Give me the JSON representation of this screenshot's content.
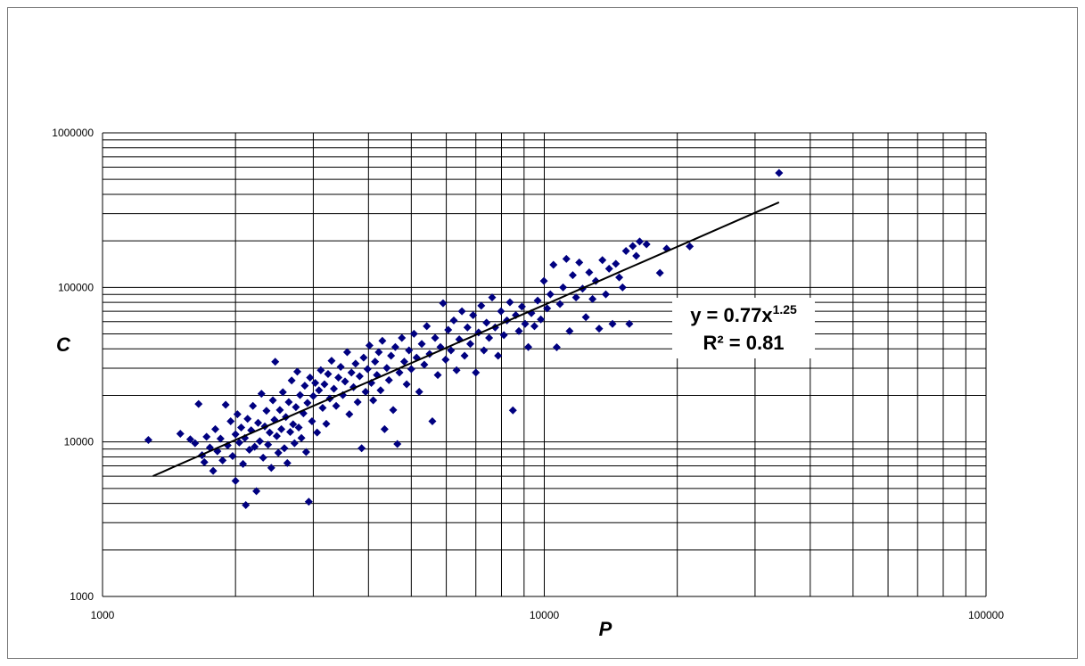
{
  "chart_data": {
    "type": "scatter",
    "title": "",
    "xlabel": "P",
    "ylabel": "C",
    "xscale": "log",
    "yscale": "log",
    "xlim": [
      1000,
      100000
    ],
    "ylim": [
      1000,
      1000000
    ],
    "x_ticks": [
      "1000",
      "10000",
      "100000"
    ],
    "y_ticks": [
      "1000",
      "10000",
      "100000",
      "1000000"
    ],
    "grid": true,
    "marker": "diamond",
    "point_color": "#000080",
    "trendline": {
      "type": "power",
      "coefficient": 0.77,
      "exponent": 1.25,
      "x_range": [
        1300,
        34000
      ],
      "color": "#000000",
      "equation": "y = 0.77x",
      "equation_exponent": "1.25",
      "r_squared": "R² = 0.81"
    },
    "points": [
      [
        1270,
        10300
      ],
      [
        1500,
        11300
      ],
      [
        1580,
        10400
      ],
      [
        1620,
        9800
      ],
      [
        1650,
        17600
      ],
      [
        1680,
        8200
      ],
      [
        1700,
        7400
      ],
      [
        1720,
        10800
      ],
      [
        1750,
        9200
      ],
      [
        1780,
        6500
      ],
      [
        1800,
        12100
      ],
      [
        1820,
        8700
      ],
      [
        1850,
        10500
      ],
      [
        1870,
        7600
      ],
      [
        1900,
        17400
      ],
      [
        1920,
        9500
      ],
      [
        1950,
        13600
      ],
      [
        1970,
        8100
      ],
      [
        2000,
        11200
      ],
      [
        2000,
        5600
      ],
      [
        2020,
        15100
      ],
      [
        2040,
        9900
      ],
      [
        2060,
        12400
      ],
      [
        2080,
        7200
      ],
      [
        2100,
        10600
      ],
      [
        2110,
        3900
      ],
      [
        2130,
        14100
      ],
      [
        2150,
        8900
      ],
      [
        2170,
        11900
      ],
      [
        2190,
        17100
      ],
      [
        2210,
        9300
      ],
      [
        2230,
        4800
      ],
      [
        2250,
        13300
      ],
      [
        2270,
        10100
      ],
      [
        2290,
        20500
      ],
      [
        2310,
        7900
      ],
      [
        2330,
        12600
      ],
      [
        2350,
        15900
      ],
      [
        2370,
        9600
      ],
      [
        2390,
        11500
      ],
      [
        2410,
        6800
      ],
      [
        2430,
        18600
      ],
      [
        2450,
        13900
      ],
      [
        2460,
        33000
      ],
      [
        2480,
        10900
      ],
      [
        2500,
        8500
      ],
      [
        2520,
        16100
      ],
      [
        2540,
        12100
      ],
      [
        2560,
        21000
      ],
      [
        2580,
        9100
      ],
      [
        2600,
        14500
      ],
      [
        2620,
        7300
      ],
      [
        2640,
        18100
      ],
      [
        2660,
        11600
      ],
      [
        2680,
        25000
      ],
      [
        2700,
        13000
      ],
      [
        2720,
        9800
      ],
      [
        2740,
        16800
      ],
      [
        2760,
        28500
      ],
      [
        2780,
        12400
      ],
      [
        2800,
        20100
      ],
      [
        2820,
        10600
      ],
      [
        2850,
        15300
      ],
      [
        2870,
        23100
      ],
      [
        2890,
        8600
      ],
      [
        2910,
        17900
      ],
      [
        2930,
        4100
      ],
      [
        2950,
        26100
      ],
      [
        2980,
        13600
      ],
      [
        3000,
        19800
      ],
      [
        3030,
        24100
      ],
      [
        3060,
        11500
      ],
      [
        3090,
        21600
      ],
      [
        3120,
        29100
      ],
      [
        3150,
        16600
      ],
      [
        3180,
        23600
      ],
      [
        3210,
        13100
      ],
      [
        3240,
        27500
      ],
      [
        3270,
        19100
      ],
      [
        3300,
        33500
      ],
      [
        3340,
        22100
      ],
      [
        3380,
        17100
      ],
      [
        3420,
        26100
      ],
      [
        3460,
        30600
      ],
      [
        3500,
        20100
      ],
      [
        3540,
        24600
      ],
      [
        3580,
        38100
      ],
      [
        3620,
        15100
      ],
      [
        3660,
        28100
      ],
      [
        3700,
        22600
      ],
      [
        3740,
        32100
      ],
      [
        3780,
        18100
      ],
      [
        3820,
        26600
      ],
      [
        3860,
        9100
      ],
      [
        3900,
        35100
      ],
      [
        3940,
        21100
      ],
      [
        3980,
        29600
      ],
      [
        4020,
        42100
      ],
      [
        4060,
        24100
      ],
      [
        4100,
        18600
      ],
      [
        4140,
        33100
      ],
      [
        4180,
        27100
      ],
      [
        4220,
        38100
      ],
      [
        4260,
        21600
      ],
      [
        4300,
        45100
      ],
      [
        4350,
        12100
      ],
      [
        4400,
        30100
      ],
      [
        4450,
        25100
      ],
      [
        4500,
        36100
      ],
      [
        4550,
        16100
      ],
      [
        4600,
        41100
      ],
      [
        4650,
        9700
      ],
      [
        4700,
        28100
      ],
      [
        4760,
        47100
      ],
      [
        4820,
        33100
      ],
      [
        4880,
        23600
      ],
      [
        4940,
        39100
      ],
      [
        5000,
        29600
      ],
      [
        5070,
        50100
      ],
      [
        5140,
        35100
      ],
      [
        5210,
        21100
      ],
      [
        5280,
        43100
      ],
      [
        5350,
        31600
      ],
      [
        5420,
        56100
      ],
      [
        5500,
        37100
      ],
      [
        5580,
        13600
      ],
      [
        5660,
        47100
      ],
      [
        5740,
        27100
      ],
      [
        5820,
        41100
      ],
      [
        5900,
        79000
      ],
      [
        5980,
        34100
      ],
      [
        6060,
        53100
      ],
      [
        6150,
        39100
      ],
      [
        6240,
        61100
      ],
      [
        6330,
        29100
      ],
      [
        6420,
        46100
      ],
      [
        6510,
        70100
      ],
      [
        6600,
        36100
      ],
      [
        6700,
        55100
      ],
      [
        6800,
        43100
      ],
      [
        6900,
        66100
      ],
      [
        7000,
        28100
      ],
      [
        7100,
        51100
      ],
      [
        7200,
        76100
      ],
      [
        7300,
        39100
      ],
      [
        7400,
        59100
      ],
      [
        7500,
        47100
      ],
      [
        7620,
        86100
      ],
      [
        7740,
        55100
      ],
      [
        7860,
        36100
      ],
      [
        7980,
        70100
      ],
      [
        8100,
        49100
      ],
      [
        8230,
        61100
      ],
      [
        8360,
        80100
      ],
      [
        8490,
        16000
      ],
      [
        8620,
        66100
      ],
      [
        8760,
        52100
      ],
      [
        8900,
        75100
      ],
      [
        9050,
        58100
      ],
      [
        9200,
        41100
      ],
      [
        9350,
        68100
      ],
      [
        9500,
        56100
      ],
      [
        9660,
        82100
      ],
      [
        9820,
        62100
      ],
      [
        9980,
        110000
      ],
      [
        10150,
        73100
      ],
      [
        10320,
        90100
      ],
      [
        10490,
        140000
      ],
      [
        10670,
        41000
      ],
      [
        10850,
        78100
      ],
      [
        11030,
        100000
      ],
      [
        11220,
        153000
      ],
      [
        11410,
        52100
      ],
      [
        11600,
        120000
      ],
      [
        11800,
        86100
      ],
      [
        12000,
        145000
      ],
      [
        12210,
        98100
      ],
      [
        12420,
        64100
      ],
      [
        12640,
        125000
      ],
      [
        12860,
        84100
      ],
      [
        13080,
        110000
      ],
      [
        13310,
        54100
      ],
      [
        13540,
        150000
      ],
      [
        13780,
        90100
      ],
      [
        14020,
        132000
      ],
      [
        14270,
        58100
      ],
      [
        14520,
        142000
      ],
      [
        14780,
        116000
      ],
      [
        15040,
        100000
      ],
      [
        15310,
        172000
      ],
      [
        15580,
        58100
      ],
      [
        15860,
        185000
      ],
      [
        16150,
        160000
      ],
      [
        16440,
        198000
      ],
      [
        17040,
        190000
      ],
      [
        18270,
        124000
      ],
      [
        18920,
        178000
      ],
      [
        21340,
        184000
      ],
      [
        34000,
        550000
      ]
    ]
  }
}
